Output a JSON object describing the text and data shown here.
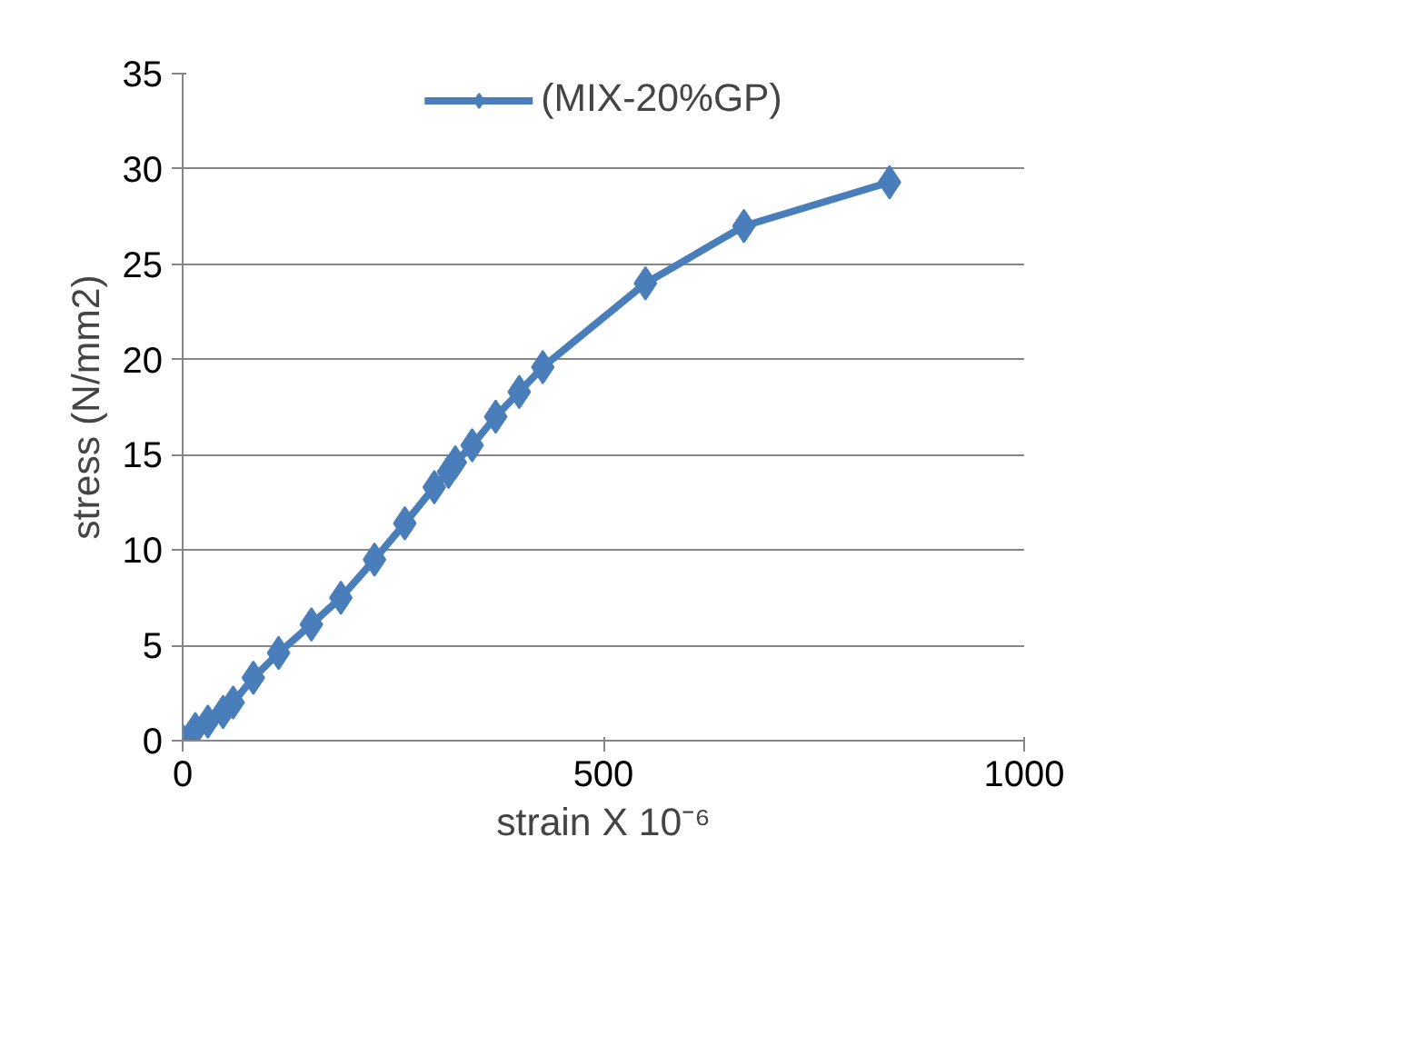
{
  "chart_data": {
    "type": "line",
    "xlabel": "strain X 10⁻⁶",
    "ylabel": "stress (N/mm2)",
    "x": [
      0,
      15,
      30,
      48,
      60,
      84,
      114,
      153,
      188,
      228,
      264,
      299,
      316,
      324,
      344,
      372,
      400,
      428,
      550,
      667,
      840
    ],
    "series": [
      {
        "name": "(MIX-20%GP)",
        "color": "#4a7ebb",
        "values": [
          0,
          0.6,
          1.0,
          1.5,
          2.0,
          3.3,
          4.6,
          6.1,
          7.5,
          9.5,
          11.4,
          13.3,
          14.1,
          14.6,
          15.5,
          17.0,
          18.3,
          19.6,
          24.0,
          27.0,
          29.3
        ]
      }
    ],
    "xlim": [
      0,
      1000
    ],
    "xticks": [
      0,
      500,
      1000
    ],
    "ylim": [
      0,
      35
    ],
    "yticks": [
      0,
      5,
      10,
      15,
      20,
      25,
      30,
      35
    ],
    "grid": "y",
    "legend": "top",
    "marker": "diamond",
    "line_style": "solid"
  }
}
